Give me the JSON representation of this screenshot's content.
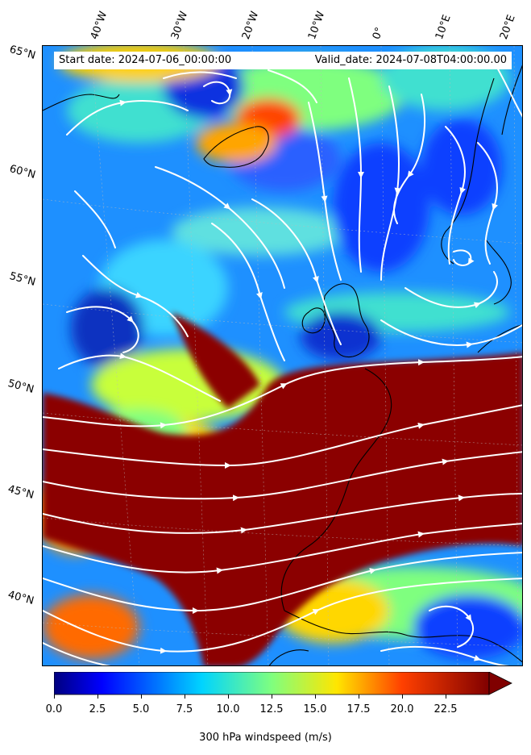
{
  "header": {
    "start_date": "Start date: 2024-07-06_00:00:00",
    "valid_date": "Valid_date: 2024-07-08T04:00:00.00"
  },
  "lon_labels": [
    "40°W",
    "30°W",
    "20°W",
    "10°W",
    "0°",
    "10°E",
    "20°E"
  ],
  "lat_labels": [
    "65°N",
    "60°N",
    "55°N",
    "50°N",
    "45°N",
    "40°N"
  ],
  "colorbar": {
    "ticks": [
      "0.0",
      "2.5",
      "5.0",
      "7.5",
      "10.0",
      "12.5",
      "15.0",
      "17.5",
      "20.0",
      "22.5"
    ],
    "label": "300 hPa windspeed (m/s)",
    "colormap": "jet",
    "extend": "max",
    "range": [
      0,
      25
    ]
  },
  "chart_data": {
    "type": "heatmap",
    "variable": "300 hPa windspeed",
    "units": "m/s",
    "overlay": "streamlines",
    "colormap": "jet"
  }
}
